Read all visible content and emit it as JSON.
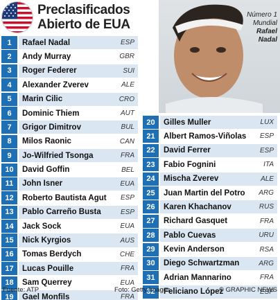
{
  "header": {
    "title_line1": "Preclasificados",
    "title_line2": "Abierto de EUA"
  },
  "caption": {
    "line1": "Número 1",
    "line2": "Mundial",
    "line3": "Rafael",
    "line4": "Nadal"
  },
  "colors": {
    "number_blue": "#1e6fb4",
    "row_light_blue": "#dbe6f3"
  },
  "players": [
    {
      "seed": "1",
      "name": "Rafael Nadal",
      "country": "ESP"
    },
    {
      "seed": "2",
      "name": "Andy Murray",
      "country": "GBR"
    },
    {
      "seed": "3",
      "name": "Roger Federer",
      "country": "SUI"
    },
    {
      "seed": "4",
      "name": "Alexander Zverev",
      "country": "ALE"
    },
    {
      "seed": "5",
      "name": "Marin Cilic",
      "country": "CRO"
    },
    {
      "seed": "6",
      "name": "Dominic Thiem",
      "country": "AUT"
    },
    {
      "seed": "7",
      "name": "Grigor Dimitrov",
      "country": "BUL"
    },
    {
      "seed": "8",
      "name": "Milos Raonic",
      "country": "CAN"
    },
    {
      "seed": "9",
      "name": "Jo-Wilfried Tsonga",
      "country": "FRA"
    },
    {
      "seed": "10",
      "name": "David Goffin",
      "country": "BEL"
    },
    {
      "seed": "11",
      "name": "John Isner",
      "country": "EUA"
    },
    {
      "seed": "12",
      "name": "Roberto Bautista Agut",
      "country": "ESP"
    },
    {
      "seed": "13",
      "name": "Pablo Carreño Busta",
      "country": "ESP"
    },
    {
      "seed": "14",
      "name": "Jack Sock",
      "country": "EUA"
    },
    {
      "seed": "15",
      "name": "Nick Kyrgios",
      "country": "AUS"
    },
    {
      "seed": "16",
      "name": "Tomas Berdych",
      "country": "CHE"
    },
    {
      "seed": "17",
      "name": "Lucas Pouille",
      "country": "FRA"
    },
    {
      "seed": "18",
      "name": "Sam Querrey",
      "country": "EUA"
    },
    {
      "seed": "19",
      "name": "Gael Monfils",
      "country": "FRA"
    },
    {
      "seed": "20",
      "name": "Gilles Muller",
      "country": "LUX"
    },
    {
      "seed": "21",
      "name": "Albert Ramos-Viñolas",
      "country": "ESP"
    },
    {
      "seed": "22",
      "name": "David Ferrer",
      "country": "ESP"
    },
    {
      "seed": "23",
      "name": "Fabio Fognini",
      "country": "ITA"
    },
    {
      "seed": "24",
      "name": "Mischa Zverev",
      "country": "ALE"
    },
    {
      "seed": "25",
      "name": "Juan Martin del Potro",
      "country": "ARG"
    },
    {
      "seed": "26",
      "name": "Karen Khachanov",
      "country": "RUS"
    },
    {
      "seed": "27",
      "name": "Richard Gasquet",
      "country": "FRA"
    },
    {
      "seed": "28",
      "name": "Pablo Cuevas",
      "country": "URU"
    },
    {
      "seed": "29",
      "name": "Kevin Anderson",
      "country": "RSA"
    },
    {
      "seed": "30",
      "name": "Diego Schwartzman",
      "country": "ARG"
    },
    {
      "seed": "31",
      "name": "Adrian Mannarino",
      "country": "FRA"
    },
    {
      "seed": "32",
      "name": "Feliciano López",
      "country": "ESP"
    }
  ],
  "footer": {
    "source": "Fuente: ATP",
    "photo": "Foto: Getty Images",
    "credit": "© GRAPHIC NEWS"
  }
}
